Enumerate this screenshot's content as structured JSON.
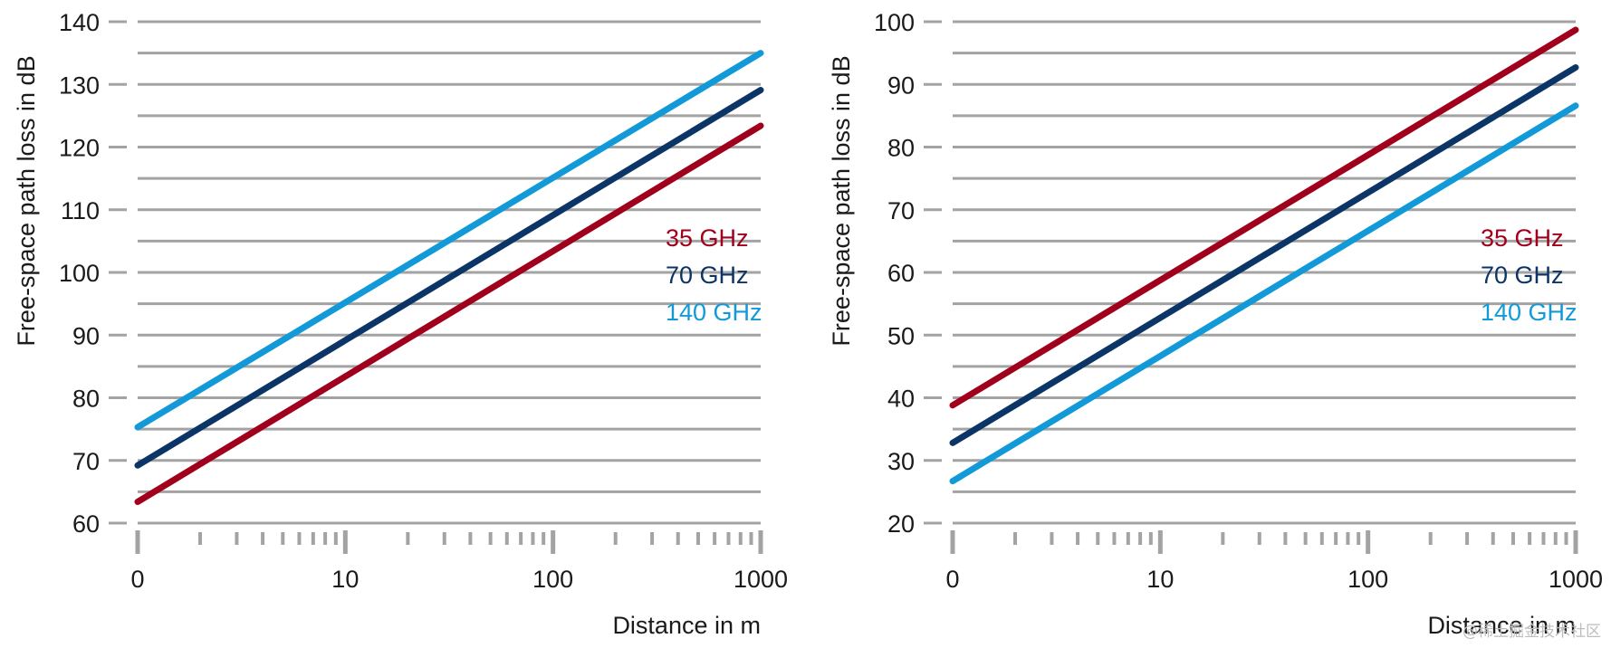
{
  "colors": {
    "35 GHz": "#a1001c",
    "70 GHz": "#0b3566",
    "140 GHz": "#129ad8",
    "grid": "#a3a3a3",
    "text": "#1a1a1a"
  },
  "watermark": "@稀土掘金技术社区",
  "chart_data": [
    {
      "type": "line",
      "title": "",
      "xlabel": "Distance in m",
      "ylabel": "Free-space path loss in dB",
      "x_scale": "log",
      "x_ticks": [
        "0",
        "10",
        "100",
        "1000"
      ],
      "y_ticks": [
        "60",
        "70",
        "80",
        "90",
        "100",
        "110",
        "120",
        "130",
        "140"
      ],
      "ylim": [
        60,
        140
      ],
      "grid": true,
      "legend_position": "right-middle",
      "series": [
        {
          "name": "35 GHz",
          "x": [
            1,
            1000
          ],
          "y": [
            63.4,
            123.4
          ]
        },
        {
          "name": "70 GHz",
          "x": [
            1,
            1000
          ],
          "y": [
            69.2,
            129.1
          ]
        },
        {
          "name": "140 GHz",
          "x": [
            1,
            1000
          ],
          "y": [
            75.3,
            135.0
          ]
        }
      ]
    },
    {
      "type": "line",
      "title": "",
      "xlabel": "Distance in m",
      "ylabel": "Free-space path loss in dB",
      "x_scale": "log",
      "x_ticks": [
        "0",
        "10",
        "100",
        "1000"
      ],
      "y_ticks": [
        "20",
        "30",
        "40",
        "50",
        "60",
        "70",
        "80",
        "90",
        "100"
      ],
      "ylim": [
        20,
        100
      ],
      "grid": true,
      "legend_position": "right-middle",
      "series": [
        {
          "name": "35 GHz",
          "x": [
            1,
            1000
          ],
          "y": [
            38.8,
            98.7
          ]
        },
        {
          "name": "70 GHz",
          "x": [
            1,
            1000
          ],
          "y": [
            32.8,
            92.7
          ]
        },
        {
          "name": "140 GHz",
          "x": [
            1,
            1000
          ],
          "y": [
            26.7,
            86.6
          ]
        }
      ]
    }
  ]
}
